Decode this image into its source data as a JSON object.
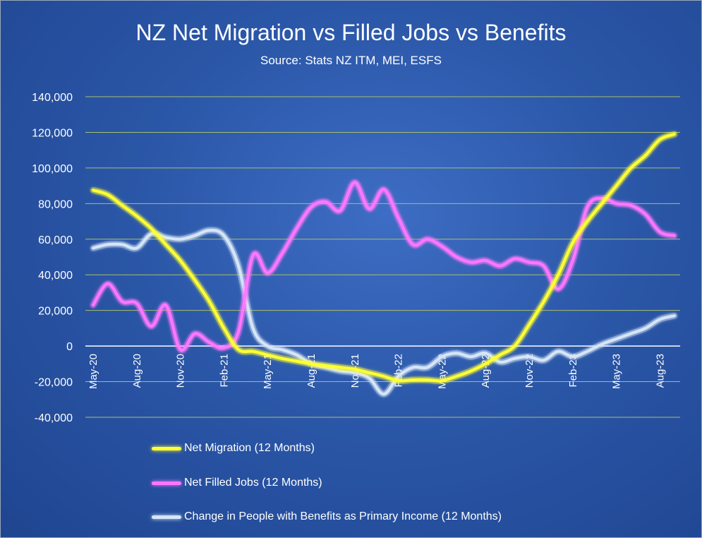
{
  "title": "NZ Net Migration vs Filled Jobs vs Benefits",
  "subtitle": "Source: Stats NZ ITM, MEI, ESFS",
  "chart_data": {
    "type": "line",
    "ylim": [
      -40000,
      140000
    ],
    "yticks": [
      -40000,
      -20000,
      0,
      20000,
      40000,
      60000,
      80000,
      100000,
      120000,
      140000
    ],
    "ytick_labels": [
      "-40,000",
      "-20,000",
      "0",
      "20,000",
      "40,000",
      "60,000",
      "80,000",
      "100,000",
      "120,000",
      "140,000"
    ],
    "x": [
      "May-20",
      "Jun-20",
      "Jul-20",
      "Aug-20",
      "Sep-20",
      "Oct-20",
      "Nov-20",
      "Dec-20",
      "Jan-21",
      "Feb-21",
      "Mar-21",
      "Apr-21",
      "May-21",
      "Jun-21",
      "Jul-21",
      "Aug-21",
      "Sep-21",
      "Oct-21",
      "Nov-21",
      "Dec-21",
      "Jan-22",
      "Feb-22",
      "Mar-22",
      "Apr-22",
      "May-22",
      "Jun-22",
      "Jul-22",
      "Aug-22",
      "Sep-22",
      "Oct-22",
      "Nov-22",
      "Dec-22",
      "Jan-23",
      "Feb-23",
      "Mar-23",
      "Apr-23",
      "May-23",
      "Jun-23",
      "Jul-23",
      "Aug-23",
      "Sep-23"
    ],
    "xtick_labels": [
      {
        "index": 0,
        "label": "May-20"
      },
      {
        "index": 3,
        "label": "Aug-20"
      },
      {
        "index": 6,
        "label": "Nov-20"
      },
      {
        "index": 9,
        "label": "Feb-21"
      },
      {
        "index": 12,
        "label": "May-21"
      },
      {
        "index": 15,
        "label": "Aug-21"
      },
      {
        "index": 18,
        "label": "Nov-21"
      },
      {
        "index": 21,
        "label": "Feb-22"
      },
      {
        "index": 24,
        "label": "May-22"
      },
      {
        "index": 27,
        "label": "Aug-22"
      },
      {
        "index": 30,
        "label": "Nov-22"
      },
      {
        "index": 33,
        "label": "Feb-23"
      },
      {
        "index": 36,
        "label": "May-23"
      },
      {
        "index": 39,
        "label": "Aug-23"
      }
    ],
    "grid": true,
    "legend_position": "bottom-left",
    "series": [
      {
        "name": "Net Migration (12 Months)",
        "color": "#ffff33",
        "values": [
          87500,
          85000,
          79000,
          73000,
          66000,
          57000,
          48000,
          37000,
          25000,
          10000,
          -2000,
          -3000,
          -5000,
          -7000,
          -8500,
          -10000,
          -11000,
          -12000,
          -13000,
          -15000,
          -17000,
          -19500,
          -19000,
          -19000,
          -19500,
          -17000,
          -14000,
          -10000,
          -5000,
          0,
          12000,
          25000,
          40000,
          58000,
          70000,
          80000,
          90000,
          100000,
          107000,
          116000,
          119000
        ]
      },
      {
        "name": "Net Filled Jobs (12 Months)",
        "color": "#ff77ff",
        "values": [
          23000,
          35000,
          25000,
          24000,
          11000,
          23000,
          -2000,
          7000,
          2000,
          -1000,
          8000,
          51000,
          41000,
          52000,
          66000,
          78000,
          81000,
          76000,
          92000,
          77000,
          88000,
          72000,
          57000,
          60000,
          56000,
          50000,
          47000,
          48000,
          45000,
          49000,
          47000,
          45000,
          32000,
          48000,
          78000,
          83000,
          80000,
          79000,
          74000,
          64000,
          62000
        ]
      },
      {
        "name": "Change in People with Benefits as Primary Income (12 Months)",
        "color": "#d6e6f7",
        "values": [
          55000,
          57000,
          57000,
          55000,
          63000,
          61000,
          60000,
          62000,
          65000,
          62000,
          45000,
          10000,
          0,
          -2000,
          -5000,
          -10000,
          -12000,
          -14000,
          -15000,
          -18000,
          -27000,
          -17000,
          -12000,
          -12000,
          -6000,
          -4000,
          -6000,
          -4000,
          -9000,
          -7000,
          -6000,
          -8000,
          -3000,
          -6000,
          -3000,
          1000,
          4000,
          7000,
          10000,
          15000,
          17000
        ]
      }
    ]
  }
}
